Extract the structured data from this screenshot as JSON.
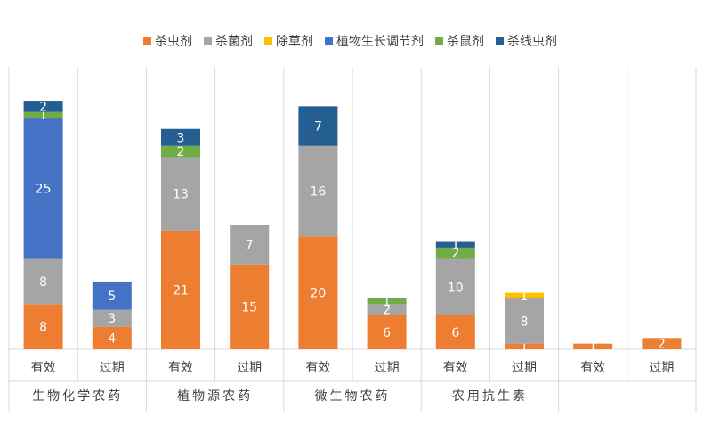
{
  "chart_data": {
    "type": "stacked_bar",
    "categories": [
      "有效",
      "过期",
      "有效",
      "过期",
      "有效",
      "过期",
      "有效",
      "过期",
      "有效",
      "过期"
    ],
    "groups": [
      "生物化学农药",
      "植物源农药",
      "微生物农药",
      "农用抗生素",
      null
    ],
    "series": [
      {
        "name": "杀虫剂",
        "color": "#ED7D31",
        "values": [
          8,
          4,
          21,
          15,
          20,
          6,
          6,
          1,
          1,
          2
        ]
      },
      {
        "name": "杀菌剂",
        "color": "#A5A5A5",
        "values": [
          8,
          3,
          13,
          7,
          16,
          2,
          10,
          8,
          null,
          null
        ]
      },
      {
        "name": "除草剂",
        "color": "#FFC000",
        "values": [
          null,
          null,
          null,
          null,
          null,
          null,
          null,
          1,
          null,
          null
        ]
      },
      {
        "name": "植物生长调节剂",
        "color": "#4472C4",
        "values": [
          25,
          5,
          null,
          null,
          null,
          null,
          null,
          null,
          null,
          null
        ]
      },
      {
        "name": "杀鼠剂",
        "color": "#70AD47",
        "values": [
          1,
          null,
          2,
          null,
          null,
          1,
          2,
          null,
          null,
          null
        ]
      },
      {
        "name": "杀线虫剂",
        "color": "#255E91",
        "values": [
          2,
          null,
          3,
          null,
          7,
          null,
          1,
          null,
          null,
          null
        ]
      }
    ],
    "ylim": [
      0,
      50
    ],
    "legend": "top"
  }
}
